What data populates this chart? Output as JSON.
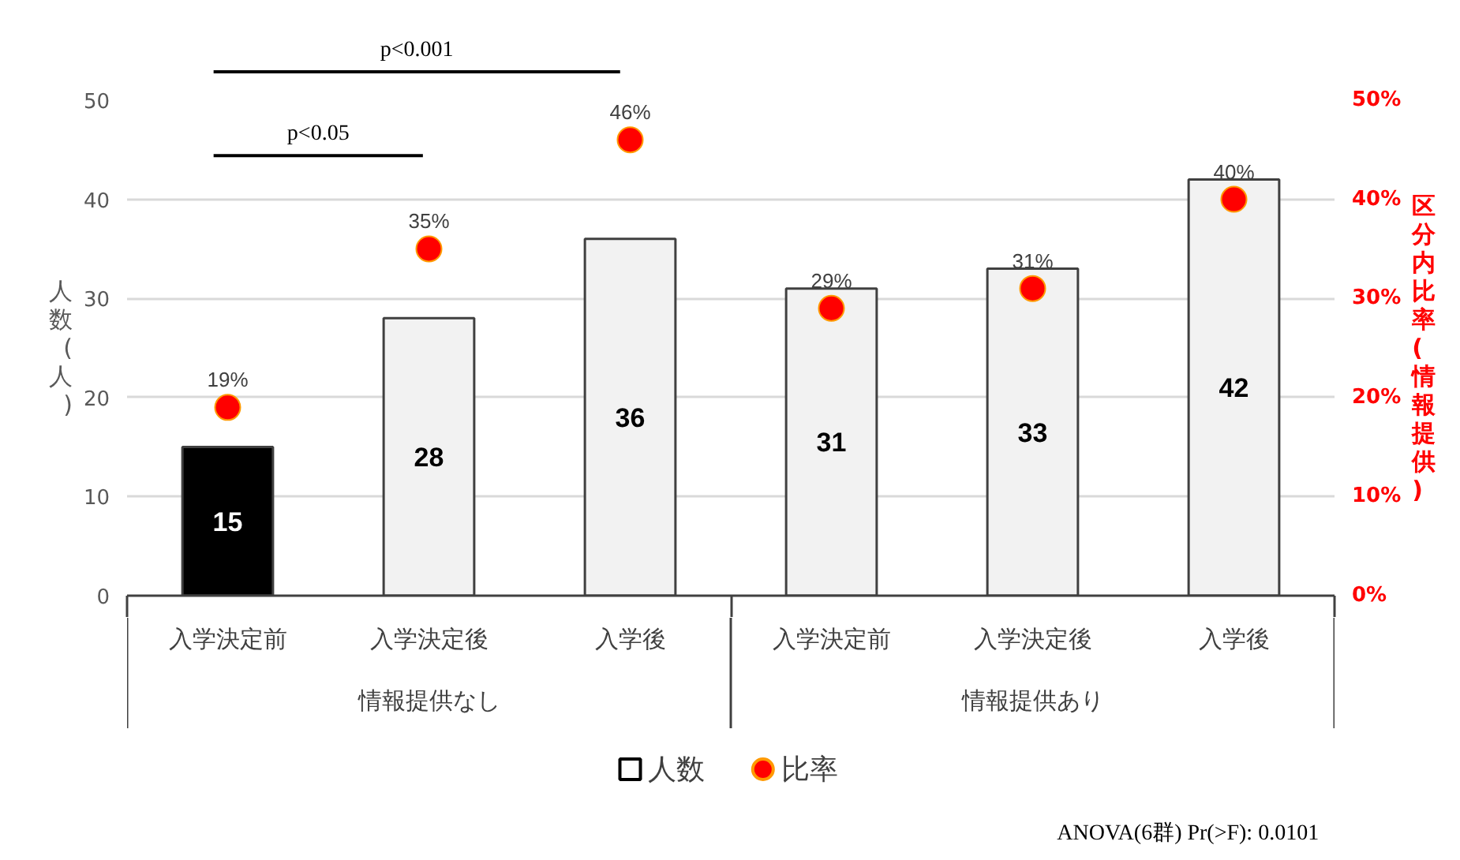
{
  "chart_data": {
    "type": "bar",
    "ylabel": "人数(人)",
    "y2label": "区分内比率(情報提供)",
    "categories": [
      "入学決定前",
      "入学決定後",
      "入学後",
      "入学決定前",
      "入学決定後",
      "入学後"
    ],
    "series": [
      {
        "name": "人数",
        "colors": [
          "#000000",
          "#f2f2f2",
          "#f2f2f2",
          "#f2f2f2",
          "#f2f2f2",
          "#f2f2f2"
        ],
        "values": [
          15,
          28,
          36,
          31,
          33,
          42
        ]
      },
      {
        "name": "比率",
        "type": "scatter",
        "axis": "y2",
        "color": "#ff0000",
        "marker": "circle",
        "values": [
          19,
          35,
          46,
          29,
          31,
          40
        ],
        "value_labels": [
          "19%",
          "35%",
          "46%",
          "29%",
          "31%",
          "40%"
        ]
      }
    ],
    "data_labels": true,
    "ylim": [
      0,
      50
    ],
    "yticks": [
      0,
      10,
      20,
      30,
      40,
      50
    ],
    "y2lim": [
      0,
      50
    ],
    "y2ticks": [
      {
        "value": 0,
        "label": "0%"
      },
      {
        "value": 10,
        "label": "10%"
      },
      {
        "value": 20,
        "label": "20%"
      },
      {
        "value": 30,
        "label": "30%"
      },
      {
        "value": 40,
        "label": "40%"
      },
      {
        "value": 50,
        "label": "50%"
      }
    ],
    "grid": "y",
    "legend": "bottom",
    "annotations": [
      "p<0.001",
      "p<0.05",
      "ANOVA(6群) Pr(>F): 0.0101",
      "情報提供なし",
      "情報提供あり"
    ]
  }
}
